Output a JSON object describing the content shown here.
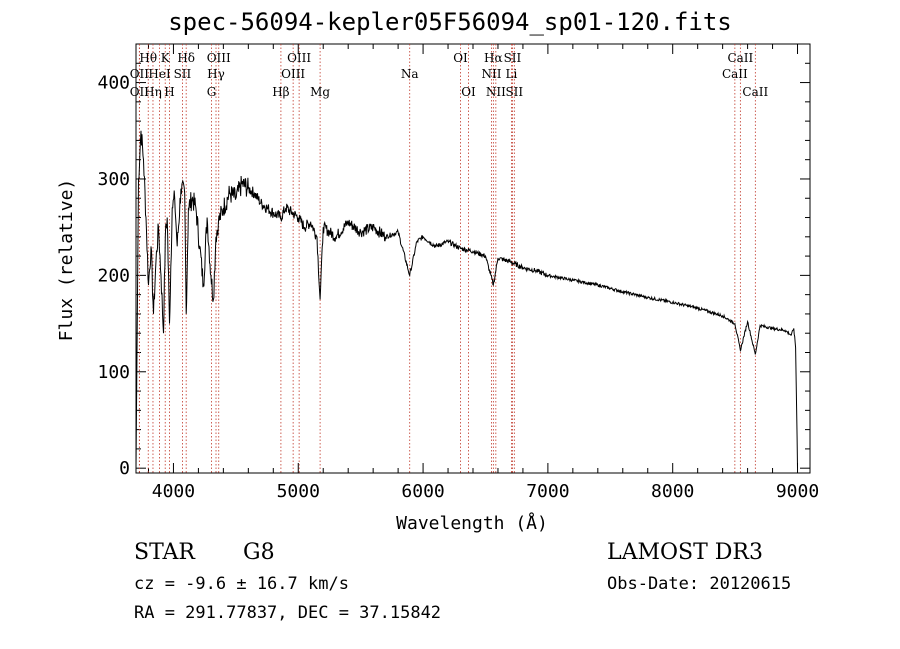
{
  "header": {
    "title": "spec-56094-kepler05F56094_sp01-120.fits"
  },
  "info": {
    "class_label": "STAR",
    "subclass": "G8",
    "survey": "LAMOST DR3",
    "cz": "cz = -9.6 ± 16.7 km/s",
    "obs_date": "Obs-Date: 20120615",
    "coords": "RA = 291.77837, DEC =  37.15842"
  },
  "chart_data": {
    "type": "line",
    "title": "spec-56094-kepler05F56094_sp01-120.fits",
    "xlabel": "Wavelength (Å)",
    "ylabel": "Flux (relative)",
    "xlim": [
      3700,
      9100
    ],
    "ylim": [
      -5,
      440
    ],
    "xticks": [
      4000,
      5000,
      6000,
      7000,
      8000,
      9000
    ],
    "yticks": [
      0,
      100,
      200,
      300,
      400
    ],
    "grid": false,
    "series": [
      {
        "name": "flux",
        "x": [
          3700,
          3720,
          3740,
          3760,
          3780,
          3800,
          3820,
          3840,
          3860,
          3880,
          3900,
          3920,
          3935,
          3950,
          3968,
          3990,
          4010,
          4030,
          4060,
          4090,
          4102,
          4120,
          4150,
          4180,
          4210,
          4240,
          4270,
          4300,
          4320,
          4340,
          4360,
          4400,
          4450,
          4500,
          4550,
          4600,
          4650,
          4700,
          4750,
          4800,
          4861,
          4900,
          4950,
          5000,
          5050,
          5100,
          5150,
          5175,
          5200,
          5300,
          5400,
          5500,
          5600,
          5700,
          5800,
          5893,
          5950,
          6000,
          6100,
          6200,
          6300,
          6400,
          6500,
          6563,
          6600,
          6700,
          6800,
          6900,
          7000,
          7200,
          7400,
          7600,
          7800,
          8000,
          8200,
          8400,
          8498,
          8542,
          8600,
          8662,
          8700,
          8800,
          8900,
          8950,
          8970,
          8985,
          9000
        ],
        "y": [
          0,
          300,
          350,
          320,
          260,
          190,
          230,
          160,
          215,
          250,
          200,
          140,
          240,
          260,
          150,
          270,
          280,
          230,
          290,
          285,
          160,
          270,
          280,
          270,
          230,
          190,
          260,
          200,
          175,
          240,
          255,
          270,
          285,
          280,
          295,
          290,
          285,
          275,
          270,
          265,
          260,
          270,
          265,
          260,
          250,
          255,
          240,
          175,
          250,
          240,
          255,
          245,
          250,
          240,
          245,
          200,
          235,
          240,
          230,
          235,
          228,
          225,
          220,
          190,
          218,
          214,
          208,
          205,
          200,
          195,
          190,
          183,
          177,
          172,
          166,
          158,
          150,
          122,
          152,
          118,
          148,
          145,
          143,
          138,
          145,
          125,
          0
        ]
      }
    ],
    "lines": [
      {
        "name": "Hθ",
        "wave": 3798,
        "row": 1
      },
      {
        "name": "OII",
        "wave": 3727,
        "row": 2
      },
      {
        "name": "OII",
        "wave": 3727,
        "row": 3
      },
      {
        "name": "Hη",
        "wave": 3836,
        "row": 3
      },
      {
        "name": "K",
        "wave": 3934,
        "row": 1
      },
      {
        "name": "HeI",
        "wave": 3889,
        "row": 2
      },
      {
        "name": "H",
        "wave": 3968,
        "row": 3
      },
      {
        "name": "Hδ",
        "wave": 4102,
        "row": 1
      },
      {
        "name": "SII",
        "wave": 4072,
        "row": 2
      },
      {
        "name": "OIII",
        "wave": 4363,
        "row": 1
      },
      {
        "name": "Hγ",
        "wave": 4341,
        "row": 2
      },
      {
        "name": "G",
        "wave": 4305,
        "row": 3
      },
      {
        "name": "Hβ",
        "wave": 4861,
        "row": 3
      },
      {
        "name": "OIII",
        "wave": 5007,
        "row": 1
      },
      {
        "name": "OIII",
        "wave": 4959,
        "row": 2
      },
      {
        "name": "Mg",
        "wave": 5175,
        "row": 3
      },
      {
        "name": "Na",
        "wave": 5893,
        "row": 2
      },
      {
        "name": "OI",
        "wave": 6300,
        "row": 1
      },
      {
        "name": "OI",
        "wave": 6364,
        "row": 3
      },
      {
        "name": "Hα",
        "wave": 6563,
        "row": 1
      },
      {
        "name": "NII",
        "wave": 6548,
        "row": 2
      },
      {
        "name": "NII",
        "wave": 6583,
        "row": 3
      },
      {
        "name": "SII",
        "wave": 6716,
        "row": 1
      },
      {
        "name": "Li",
        "wave": 6708,
        "row": 2
      },
      {
        "name": "SII",
        "wave": 6731,
        "row": 3
      },
      {
        "name": "CaII",
        "wave": 8542,
        "row": 1
      },
      {
        "name": "CaII",
        "wave": 8498,
        "row": 2
      },
      {
        "name": "CaII",
        "wave": 8662,
        "row": 3
      }
    ]
  }
}
